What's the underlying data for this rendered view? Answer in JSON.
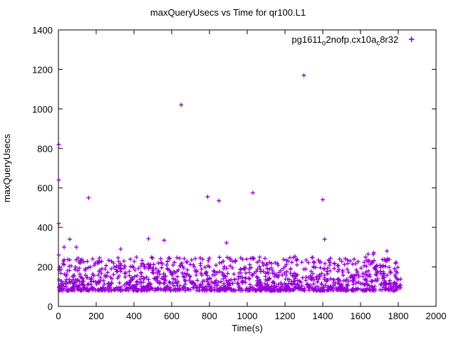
{
  "chart": {
    "title": "maxQueryUsecs vs Time for qr100.L1",
    "xlabel": "Time(s)",
    "ylabel": "maxQueryUsecs",
    "legend": {
      "p1": "pg1611",
      "sub1": "o",
      "p2": "2nofp.cx10a",
      "sub2": "c",
      "p3": "8r32",
      "marker": "+"
    }
  },
  "chart_data": {
    "type": "scatter",
    "title": "maxQueryUsecs vs Time for qr100.L1",
    "xlabel": "Time(s)",
    "ylabel": "maxQueryUsecs",
    "xlim": [
      0,
      2000
    ],
    "ylim": [
      0,
      1400
    ],
    "xticks": [
      0,
      200,
      400,
      600,
      800,
      1000,
      1200,
      1400,
      1600,
      1800,
      2000
    ],
    "yticks": [
      0,
      200,
      400,
      600,
      800,
      1000,
      1200,
      1400
    ],
    "grid": false,
    "legend_position": "top-right-inside",
    "series": [
      {
        "name": "pg1611_o2nofp.cx10a_c8r32",
        "marker": "plus",
        "color": "#9400D3",
        "cluster": {
          "n": 1300,
          "x_min": 2,
          "x_max": 1815,
          "y_base": 80,
          "y_span": 170,
          "power": 2.2,
          "tail_prob": 0.04,
          "tail_extra": 110,
          "seed": 42
        },
        "outliers": [
          [
            2,
            820
          ],
          [
            160,
            550
          ],
          [
            650,
            1020
          ],
          [
            790,
            555
          ],
          [
            850,
            535
          ],
          [
            1030,
            575
          ],
          [
            1300,
            1170
          ],
          [
            1400,
            540
          ],
          [
            60,
            340
          ],
          [
            560,
            335
          ],
          [
            1410,
            340
          ],
          [
            95,
            300
          ],
          [
            30,
            300
          ],
          [
            330,
            290
          ],
          [
            1740,
            280
          ],
          [
            1640,
            265
          ],
          [
            2,
            640
          ],
          [
            2,
            420
          ],
          [
            2,
            260
          ]
        ]
      }
    ]
  }
}
